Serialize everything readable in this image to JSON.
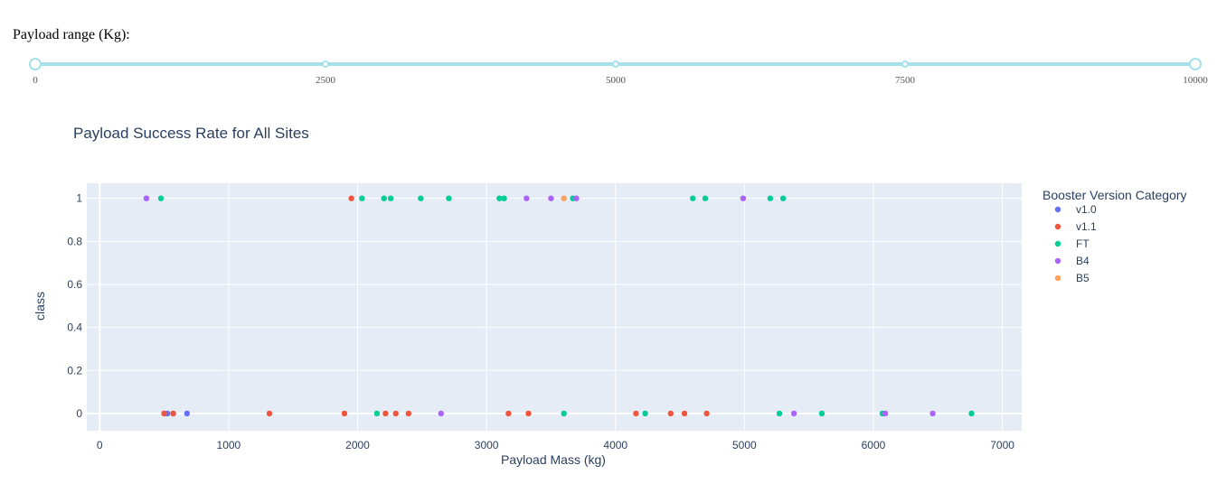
{
  "slider": {
    "label": "Payload range (Kg):",
    "min": 0,
    "max": 10000,
    "value": [
      0,
      10000
    ],
    "marks": [
      "0",
      "2500",
      "5000",
      "7500",
      "10000"
    ],
    "track_color": "#a6e0ea"
  },
  "chart_data": {
    "type": "scatter",
    "title": "Payload Success Rate for All Sites",
    "xlabel": "Payload Mass (kg)",
    "ylabel": "class",
    "xlim": [
      -100,
      7150
    ],
    "ylim": [
      -0.08,
      1.07
    ],
    "x_ticks": [
      0,
      1000,
      2000,
      3000,
      4000,
      5000,
      6000,
      7000
    ],
    "x_tick_labels": [
      "0",
      "1000",
      "2000",
      "3000",
      "4000",
      "5000",
      "6000",
      "7000"
    ],
    "y_ticks": [
      0,
      0.2,
      0.4,
      0.6,
      0.8,
      1
    ],
    "y_tick_labels": [
      "0",
      "0.2",
      "0.4",
      "0.6",
      "0.8",
      "1"
    ],
    "grid": true,
    "legend_title": "Booster Version Category",
    "legend_position": "right",
    "series": [
      {
        "name": "v1.0",
        "color": "#636efa",
        "x": [
          525,
          677,
          500,
          570
        ],
        "y": [
          0,
          0,
          0,
          0
        ]
      },
      {
        "name": "v1.1",
        "color": "#ef553b",
        "x": [
          500,
          570,
          1316,
          1898,
          1952,
          2216,
          2296,
          2395,
          3170,
          3325,
          4159,
          4428,
          4535,
          4707
        ],
        "y": [
          0,
          0,
          0,
          0,
          1,
          0,
          0,
          0,
          0,
          0,
          0,
          0,
          0,
          0
        ]
      },
      {
        "name": "FT",
        "color": "#00cc96",
        "x": [
          475,
          2034,
          2150,
          2205,
          2257,
          2490,
          2708,
          3100,
          3136,
          3600,
          3669,
          4230,
          4600,
          4696,
          5200,
          5271,
          5300,
          5600,
          6070,
          6761
        ],
        "y": [
          1,
          1,
          0,
          1,
          1,
          1,
          1,
          1,
          1,
          0,
          1,
          0,
          1,
          1,
          1,
          0,
          1,
          0,
          0,
          0
        ]
      },
      {
        "name": "B4",
        "color": "#ab63fa",
        "x": [
          362,
          2647,
          3310,
          3500,
          3696,
          4990,
          5384,
          6092,
          6460
        ],
        "y": [
          1,
          0,
          1,
          1,
          1,
          1,
          0,
          0,
          0
        ]
      },
      {
        "name": "B5",
        "color": "#ffa15a",
        "x": [
          3600
        ],
        "y": [
          1
        ]
      }
    ]
  }
}
